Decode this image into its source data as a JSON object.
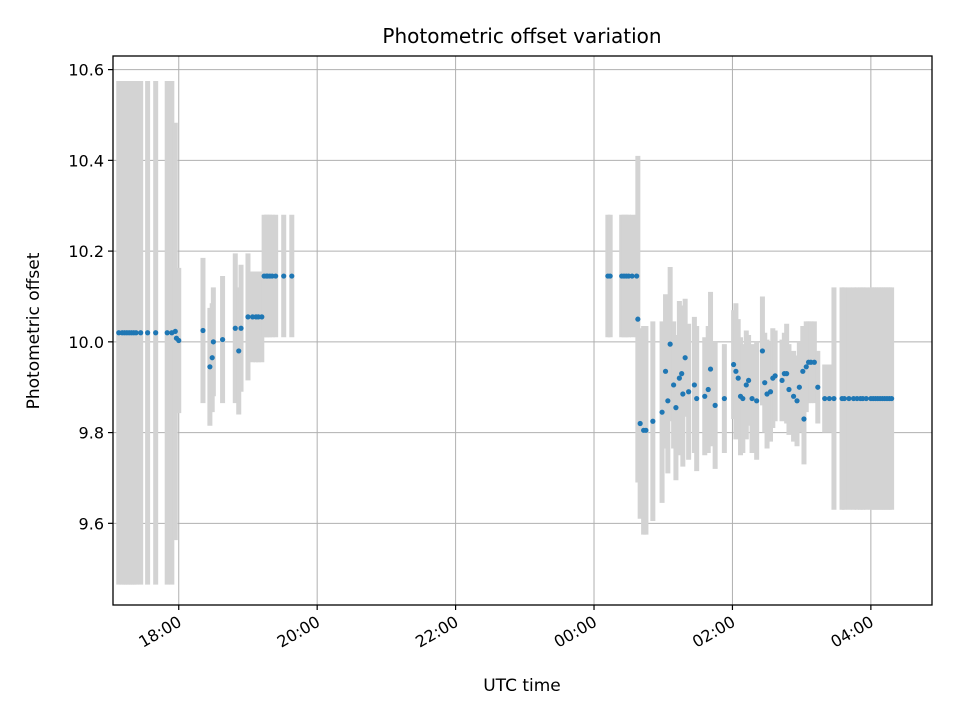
{
  "chart_data": {
    "type": "scatter",
    "title": "Photometric offset variation",
    "xlabel": "UTC time",
    "ylabel": "Photometric offset",
    "x_tick_labels": [
      "18:00",
      "20:00",
      "22:00",
      "00:00",
      "02:00",
      "04:00"
    ],
    "y_tick_labels": [
      "9.6",
      "9.8",
      "10.0",
      "10.2",
      "10.4",
      "10.6"
    ],
    "y_ticks": [
      9.6,
      9.8,
      10.0,
      10.2,
      10.4,
      10.6
    ],
    "ylim": [
      9.42,
      10.63
    ],
    "xlim": [
      "17:03",
      "04:53"
    ],
    "grid": true,
    "colors": {
      "point": "#1f77b4",
      "errorbar": "#d3d3d3",
      "grid": "#b0b0b0"
    },
    "series": [
      {
        "x": [
          "17:08",
          "17:11",
          "17:13",
          "17:15",
          "17:17",
          "17:19",
          "17:21",
          "17:23",
          "17:27",
          "17:33",
          "17:40",
          "17:50",
          "17:54",
          "17:57",
          "17:58",
          "18:00",
          "18:21",
          "18:27",
          "18:29",
          "18:30",
          "18:38",
          "18:49",
          "18:52",
          "18:54",
          "19:00",
          "19:04",
          "19:07",
          "19:09",
          "19:12",
          "19:14",
          "19:16",
          "19:17",
          "19:19",
          "19:21",
          "19:24",
          "19:31",
          "19:38",
          "00:12",
          "00:14",
          "00:24",
          "00:26",
          "00:28",
          "00:30",
          "00:33",
          "00:37",
          "00:38",
          "00:40",
          "00:43",
          "00:45",
          "00:51",
          "00:59",
          "01:02",
          "01:04",
          "01:06",
          "01:09",
          "01:11",
          "01:14",
          "01:16",
          "01:17",
          "01:19",
          "01:22",
          "01:27",
          "01:29",
          "01:36",
          "01:39",
          "01:41",
          "01:45",
          "01:53",
          "02:01",
          "02:03",
          "02:05",
          "02:07",
          "02:09",
          "02:12",
          "02:14",
          "02:17",
          "02:21",
          "02:26",
          "02:28",
          "02:30",
          "02:33",
          "02:35",
          "02:37",
          "02:43",
          "02:45",
          "02:47",
          "02:49",
          "02:53",
          "02:56",
          "02:58",
          "03:01",
          "03:02",
          "03:04",
          "03:06",
          "03:08",
          "03:11",
          "03:14",
          "03:20",
          "03:24",
          "03:28",
          "03:35",
          "03:37",
          "03:41",
          "03:45",
          "03:48",
          "03:51",
          "03:53",
          "03:56",
          "04:00",
          "04:02",
          "04:04",
          "04:06",
          "04:08",
          "04:10",
          "04:12",
          "04:14",
          "04:16",
          "04:18"
        ],
        "y": [
          10.02,
          10.02,
          10.02,
          10.02,
          10.02,
          10.02,
          10.02,
          10.02,
          10.02,
          10.02,
          10.02,
          10.02,
          10.02,
          10.023,
          10.008,
          10.003,
          10.025,
          9.945,
          9.965,
          10.0,
          10.005,
          10.03,
          9.98,
          10.03,
          10.055,
          10.055,
          10.055,
          10.055,
          10.055,
          10.145,
          10.145,
          10.145,
          10.145,
          10.145,
          10.145,
          10.145,
          10.145,
          10.145,
          10.145,
          10.145,
          10.145,
          10.145,
          10.145,
          10.145,
          10.145,
          10.05,
          9.82,
          9.805,
          9.805,
          9.825,
          9.845,
          9.935,
          9.87,
          9.995,
          9.905,
          9.855,
          9.92,
          9.93,
          9.885,
          9.965,
          9.89,
          9.905,
          9.875,
          9.88,
          9.895,
          9.94,
          9.86,
          9.875,
          9.95,
          9.935,
          9.92,
          9.88,
          9.875,
          9.905,
          9.915,
          9.875,
          9.87,
          9.98,
          9.91,
          9.885,
          9.89,
          9.92,
          9.925,
          9.915,
          9.93,
          9.93,
          9.895,
          9.88,
          9.87,
          9.9,
          9.935,
          9.83,
          9.945,
          9.955,
          9.955,
          9.955,
          9.9,
          9.875,
          9.875,
          9.875,
          9.875,
          9.875,
          9.875,
          9.875,
          9.875,
          9.875,
          9.875,
          9.875,
          9.875,
          9.875,
          9.875,
          9.875,
          9.875,
          9.875,
          9.875,
          9.875,
          9.875,
          9.875
        ],
        "yerr": [
          0.555,
          0.555,
          0.555,
          0.555,
          0.555,
          0.555,
          0.555,
          0.555,
          0.555,
          0.555,
          0.555,
          0.555,
          0.555,
          0.46,
          0.14,
          0.16,
          0.16,
          0.13,
          0.12,
          0.12,
          0.14,
          0.165,
          0.14,
          0.14,
          0.14,
          0.1,
          0.1,
          0.1,
          0.1,
          0.135,
          0.135,
          0.135,
          0.135,
          0.135,
          0.135,
          0.135,
          0.135,
          0.135,
          0.135,
          0.135,
          0.135,
          0.135,
          0.135,
          0.135,
          0.135,
          0.36,
          0.21,
          0.23,
          0.23,
          0.22,
          0.2,
          0.17,
          0.16,
          0.17,
          0.14,
          0.16,
          0.17,
          0.15,
          0.16,
          0.13,
          0.15,
          0.15,
          0.16,
          0.13,
          0.14,
          0.17,
          0.14,
          0.12,
          0.12,
          0.15,
          0.13,
          0.13,
          0.12,
          0.12,
          0.1,
          0.12,
          0.13,
          0.12,
          0.11,
          0.12,
          0.11,
          0.11,
          0.1,
          0.09,
          0.09,
          0.11,
          0.1,
          0.1,
          0.1,
          0.1,
          0.1,
          0.1,
          0.1,
          0.09,
          0.09,
          0.09,
          0.08,
          0.075,
          0.075,
          0.245,
          0.245,
          0.245,
          0.245,
          0.245,
          0.245,
          0.245,
          0.245,
          0.245,
          0.245,
          0.245,
          0.245,
          0.245,
          0.245,
          0.245,
          0.245,
          0.245,
          0.245,
          0.245
        ]
      }
    ]
  }
}
